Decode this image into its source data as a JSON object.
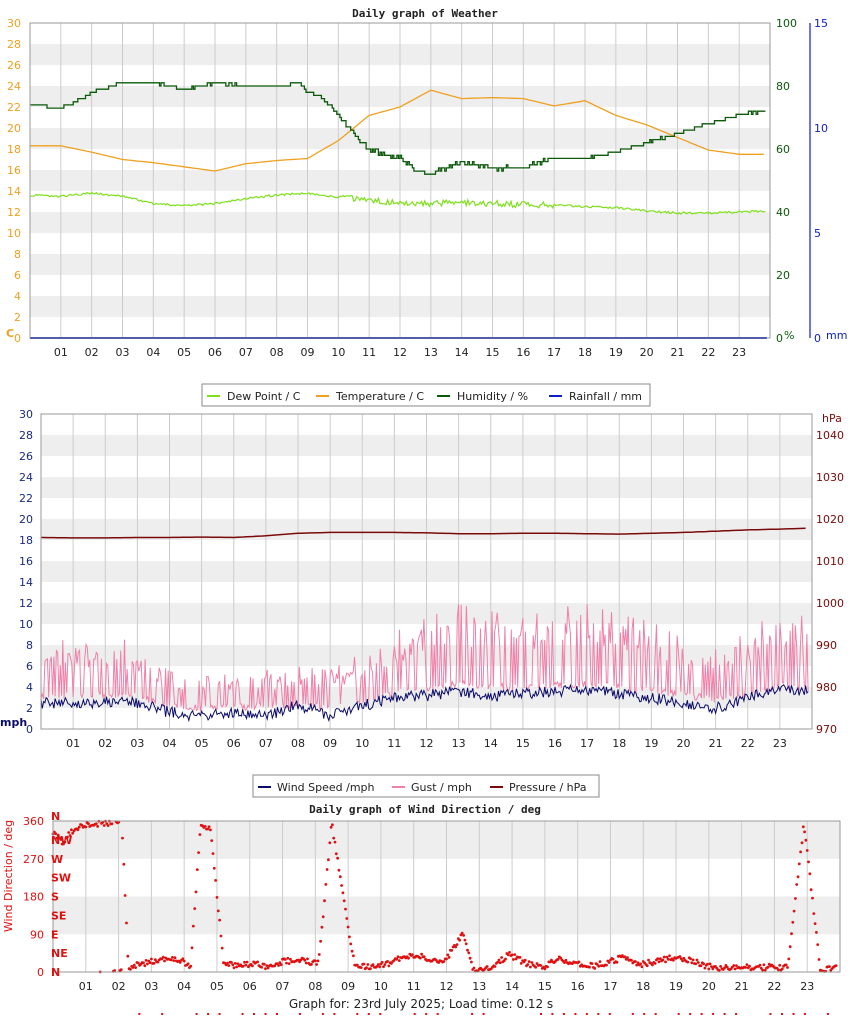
{
  "colors": {
    "dew_point": "#7ee01a",
    "temperature": "#f0a020",
    "humidity": "#0a5a0a",
    "rainfall": "#1020c0",
    "wind_speed": "#0a0a6a",
    "gust": "#f080a8",
    "pressure": "#7a0a0a",
    "direction": "#e01010",
    "band": "#eeeeee",
    "grid": "#cccccc"
  },
  "chart_data": [
    {
      "type": "line",
      "title": "Daily graph of Weather",
      "x_ticks": [
        "01",
        "02",
        "03",
        "04",
        "05",
        "06",
        "07",
        "08",
        "09",
        "10",
        "11",
        "12",
        "13",
        "14",
        "15",
        "16",
        "17",
        "18",
        "19",
        "20",
        "21",
        "22",
        "23"
      ],
      "y_left": {
        "unit": "C",
        "ylim": [
          0,
          30
        ],
        "ticks": [
          "0",
          "2",
          "4",
          "6",
          "8",
          "10",
          "12",
          "14",
          "16",
          "18",
          "20",
          "22",
          "24",
          "26",
          "28",
          "30"
        ]
      },
      "y_right1": {
        "unit": "%",
        "ylim": [
          0,
          100
        ],
        "ticks": [
          "0",
          "20",
          "40",
          "60",
          "80",
          "100"
        ]
      },
      "y_right2": {
        "unit": "mm",
        "ylim": [
          0,
          15
        ],
        "ticks": [
          "0",
          "5",
          "10",
          "15"
        ]
      },
      "legend_position": "bottom",
      "series": [
        {
          "name": "Dew Point / C",
          "axis": "left",
          "x": [
            0,
            1,
            2,
            3,
            4,
            5,
            6,
            7,
            8,
            9,
            10,
            11,
            12,
            13,
            14,
            15,
            16,
            17,
            18,
            19,
            20,
            21,
            22,
            23,
            23.9
          ],
          "values": [
            13.6,
            13.5,
            13.8,
            13.5,
            12.8,
            12.6,
            12.8,
            13.3,
            13.6,
            13.8,
            13.4,
            13.1,
            12.8,
            12.8,
            12.9,
            12.8,
            12.7,
            12.7,
            12.5,
            12.4,
            12.1,
            11.9,
            11.9,
            12.0,
            12.1
          ]
        },
        {
          "name": "Temperature / C",
          "axis": "left",
          "x": [
            0,
            1,
            2,
            3,
            4,
            5,
            6,
            7,
            8,
            9,
            10,
            10.5,
            11,
            12,
            13,
            14,
            15,
            16,
            17,
            18,
            19,
            20,
            21,
            22,
            23,
            23.9
          ],
          "values": [
            18.3,
            18.3,
            17.7,
            17.0,
            16.7,
            16.3,
            15.9,
            16.6,
            16.9,
            17.1,
            18.8,
            20.0,
            21.2,
            22.0,
            23.6,
            22.8,
            22.9,
            22.8,
            22.1,
            22.6,
            21.2,
            20.3,
            19.1,
            17.9,
            17.5,
            17.5
          ]
        },
        {
          "name": "Humidity / %",
          "axis": "right1",
          "x": [
            0,
            0.9,
            1.3,
            2,
            3,
            4,
            5,
            6,
            7,
            8,
            8.7,
            9,
            9.5,
            10,
            10.4,
            11,
            12,
            12.5,
            13,
            13.5,
            14,
            15,
            16,
            16.5,
            17,
            18,
            19,
            20,
            21,
            22,
            23,
            23.9
          ],
          "values": [
            74,
            73,
            74,
            78,
            81,
            81,
            79,
            81,
            80,
            80,
            81,
            78,
            76,
            71,
            66,
            60,
            57,
            53,
            52,
            54,
            56,
            54,
            54,
            56,
            57,
            57,
            59,
            62,
            65,
            68,
            71,
            72
          ]
        },
        {
          "name": "Rainfall / mm",
          "axis": "right2",
          "x": [
            0,
            23.9
          ],
          "values": [
            0,
            0
          ]
        }
      ]
    },
    {
      "type": "line",
      "x_ticks": [
        "01",
        "02",
        "03",
        "04",
        "05",
        "06",
        "07",
        "08",
        "09",
        "10",
        "11",
        "12",
        "13",
        "14",
        "15",
        "16",
        "17",
        "18",
        "19",
        "20",
        "21",
        "22",
        "23"
      ],
      "y_left": {
        "unit": "mph",
        "ylim": [
          0,
          30
        ],
        "ticks": [
          "0",
          "2",
          "4",
          "6",
          "8",
          "10",
          "12",
          "14",
          "16",
          "18",
          "20",
          "22",
          "24",
          "26",
          "28",
          "30"
        ]
      },
      "y_right": {
        "unit": "hPa",
        "ylim": [
          970,
          1045
        ],
        "ticks": [
          "970",
          "980",
          "990",
          "1000",
          "1010",
          "1020",
          "1030",
          "1040"
        ]
      },
      "legend_position": "bottom",
      "series": [
        {
          "name": "Wind Speed /mph",
          "axis": "left",
          "x": [
            0,
            1,
            2,
            3,
            4,
            5,
            6,
            7,
            8,
            9,
            10,
            11,
            12,
            13,
            14,
            15,
            16,
            17,
            18,
            19,
            20,
            21,
            22,
            23,
            23.9
          ],
          "values": [
            2.5,
            2.4,
            2.6,
            2.5,
            1.6,
            1.2,
            1.6,
            1.2,
            2.3,
            1.3,
            2.2,
            3.0,
            3.2,
            3.6,
            3.1,
            3.4,
            3.6,
            3.7,
            3.4,
            3.0,
            2.4,
            2.0,
            3.0,
            3.9,
            3.6
          ]
        },
        {
          "name": "Gust / mph",
          "axis": "left",
          "x": [
            0,
            1,
            2,
            3,
            4,
            5,
            6,
            7,
            8,
            9,
            10,
            11,
            12,
            13,
            14,
            15,
            16,
            17,
            18,
            19,
            20,
            21,
            22,
            23,
            23.9
          ],
          "values": [
            5.0,
            5.2,
            5.4,
            5.0,
            3.3,
            3.0,
            3.2,
            3.4,
            3.6,
            3.4,
            4.4,
            5.6,
            6.4,
            7.2,
            6.8,
            6.4,
            7.0,
            7.2,
            6.6,
            6.2,
            5.2,
            4.6,
            5.6,
            7.0,
            6.4
          ]
        },
        {
          "name": "Pressure / hPa",
          "axis": "right",
          "x": [
            0,
            1,
            2,
            3,
            4,
            5,
            6,
            7,
            8,
            9,
            10,
            11,
            12,
            13,
            14,
            15,
            16,
            17,
            18,
            19,
            20,
            21,
            22,
            23,
            23.9
          ],
          "values": [
            1015.6,
            1015.5,
            1015.5,
            1015.6,
            1015.6,
            1015.7,
            1015.6,
            1016.0,
            1016.6,
            1016.8,
            1016.8,
            1016.8,
            1016.7,
            1016.5,
            1016.5,
            1016.6,
            1016.6,
            1016.5,
            1016.4,
            1016.6,
            1016.8,
            1017.1,
            1017.4,
            1017.6,
            1017.8
          ]
        }
      ]
    },
    {
      "type": "scatter",
      "title": "Daily graph of Wind Direction / deg",
      "ylabel": "Wind Direction / deg",
      "x_ticks": [
        "01",
        "02",
        "03",
        "04",
        "05",
        "06",
        "07",
        "08",
        "09",
        "10",
        "11",
        "12",
        "13",
        "14",
        "15",
        "16",
        "17",
        "18",
        "19",
        "20",
        "21",
        "22",
        "23"
      ],
      "y_ticks": [
        "0",
        "90",
        "180",
        "270",
        "360"
      ],
      "compass_labels": [
        "N",
        "NE",
        "E",
        "SE",
        "S",
        "SW",
        "W",
        "NW",
        "N"
      ],
      "ylim": [
        0,
        360
      ],
      "series": [
        {
          "name": "Wind Direction / deg",
          "x": [
            0,
            0.3,
            0.7,
            1.1,
            1.6,
            2.1,
            2.3,
            2.6,
            3.0,
            3.5,
            3.9,
            4.2,
            4.5,
            4.8,
            5.2,
            5.6,
            6.1,
            6.6,
            7.0,
            7.5,
            8.1,
            8.5,
            9.2,
            9.8,
            10.2,
            10.7,
            11.1,
            11.6,
            12.0,
            12.5,
            12.8,
            13.4,
            13.9,
            14.4,
            14.9,
            15.4,
            15.9,
            16.5,
            16.9,
            17.4,
            17.9,
            18.4,
            18.9,
            19.4,
            19.9,
            20.4,
            20.9,
            21.4,
            21.9,
            22.4,
            22.9,
            23.4,
            23.9
          ],
          "values": [
            330,
            310,
            345,
            350,
            355,
            360,
            5,
            18,
            25,
            35,
            28,
            15,
            355,
            340,
            22,
            15,
            20,
            12,
            25,
            28,
            20,
            355,
            12,
            15,
            20,
            35,
            40,
            25,
            30,
            95,
            8,
            12,
            42,
            22,
            10,
            30,
            20,
            15,
            22,
            35,
            18,
            25,
            35,
            30,
            15,
            8,
            12,
            10,
            12,
            10,
            355,
            5,
            10
          ]
        }
      ]
    }
  ],
  "legend1": [
    {
      "label": "Dew Point / C"
    },
    {
      "label": "Temperature / C"
    },
    {
      "label": "Humidity / %"
    },
    {
      "label": "Rainfall / mm"
    }
  ],
  "legend2": [
    {
      "label": "Wind Speed /mph"
    },
    {
      "label": "Gust / mph"
    },
    {
      "label": "Pressure / hPa"
    }
  ],
  "footer": "Graph for: 23rd July 2025; Load time: 0.12 s"
}
